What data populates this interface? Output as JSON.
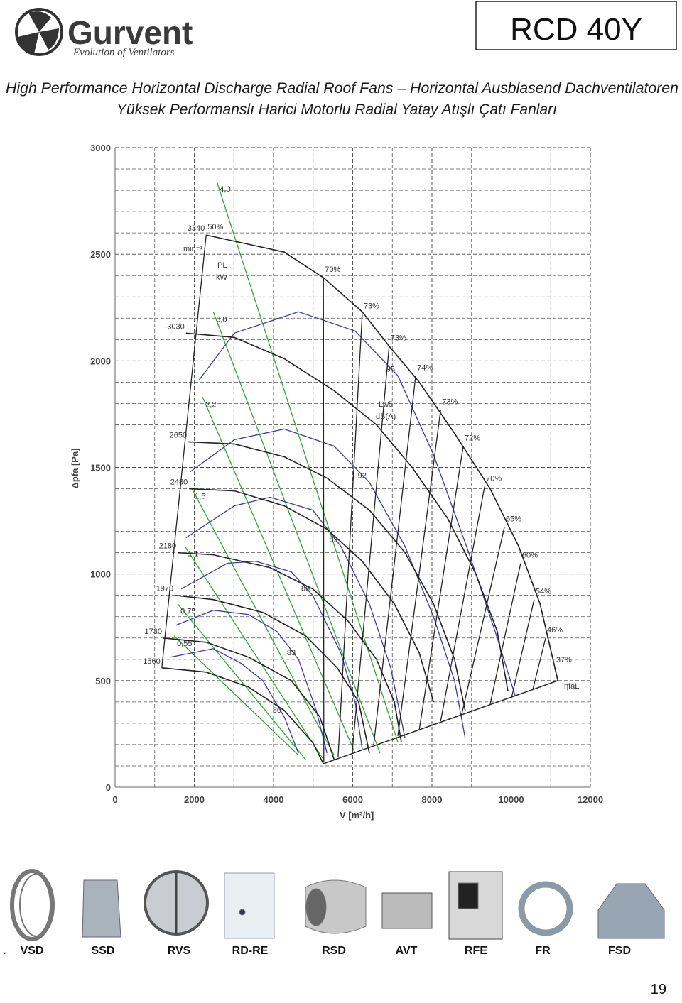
{
  "header": {
    "brand": "Gurvent",
    "tagline": "Evolution of Ventilators",
    "model": "RCD 40Y"
  },
  "titles": [
    "High Performance Horizontal Discharge Radial Roof Fans – Horizontal Ausblasend Dachventilatoren",
    "Yüksek Performanslı Harici Motorlu Radial Yatay Atışlı Çatı Fanları"
  ],
  "chart_data": {
    "type": "line",
    "xlabel": "V̇ [m³/h]",
    "ylabel": "Δpfa [Pa]",
    "xlim": [
      0,
      12000
    ],
    "ylim": [
      0,
      3000
    ],
    "xticks": [
      0,
      2000,
      4000,
      6000,
      8000,
      10000,
      12000
    ],
    "yticks": [
      0,
      500,
      1000,
      1500,
      2000,
      2500,
      3000
    ],
    "grid": true,
    "annotations": [
      "min⁻¹",
      "PL",
      "kW",
      "Lw5",
      "dB(A)",
      "ηfaL"
    ],
    "series": [
      {
        "name": "3340",
        "color": "#222222",
        "x": [
          2300,
          4270,
          5260,
          6240,
          6960,
          7680,
          8570,
          9470,
          10190,
          10730,
          11180
        ],
        "values": [
          2590,
          2510,
          2390,
          2230,
          2060,
          1900,
          1660,
          1400,
          1130,
          860,
          500
        ]
      },
      {
        "name": "3030",
        "color": "#222222",
        "x": [
          1790,
          3010,
          4270,
          5530,
          6600,
          7500,
          8400,
          9110,
          9650,
          9920
        ],
        "values": [
          2130,
          2110,
          2010,
          1860,
          1700,
          1500,
          1260,
          1000,
          730,
          450
        ]
      },
      {
        "name": "2650",
        "color": "#222222",
        "x": [
          1850,
          3010,
          4270,
          5350,
          6420,
          7320,
          8040,
          8570,
          8840
        ],
        "values": [
          1620,
          1610,
          1550,
          1450,
          1300,
          1100,
          860,
          600,
          360
        ]
      },
      {
        "name": "2480",
        "color": "#222222",
        "x": [
          1870,
          3010,
          4270,
          5350,
          6240,
          7050,
          7680,
          8040
        ],
        "values": [
          1400,
          1390,
          1320,
          1210,
          1060,
          860,
          630,
          400
        ]
      },
      {
        "name": "2180",
        "color": "#222222",
        "x": [
          1580,
          2480,
          3910,
          4990,
          5880,
          6600,
          7050,
          7230
        ],
        "values": [
          1100,
          1090,
          1030,
          930,
          780,
          600,
          400,
          210
        ]
      },
      {
        "name": "1970",
        "color": "#222222",
        "x": [
          1510,
          2480,
          3730,
          4810,
          5610,
          6150,
          6420
        ],
        "values": [
          900,
          880,
          820,
          710,
          560,
          400,
          160
        ]
      },
      {
        "name": "1730",
        "color": "#222222",
        "x": [
          1220,
          2300,
          3370,
          4450,
          5170,
          5530
        ],
        "values": [
          700,
          680,
          610,
          500,
          330,
          130
        ]
      },
      {
        "name": "1560",
        "color": "#222222",
        "x": [
          1180,
          2300,
          3370,
          4270,
          4990,
          5260
        ],
        "values": [
          560,
          540,
          470,
          360,
          210,
          110
        ]
      }
    ],
    "boundary": [
      {
        "color": "#222222",
        "x": [
          5260,
          11180
        ],
        "values": [
          110,
          500
        ]
      }
    ],
    "power_lines": [
      {
        "name": "4,0",
        "color": "#2fa82f",
        "x": [
          2570,
          7140
        ],
        "values": [
          2840,
          210
        ]
      },
      {
        "name": "3,0",
        "color": "#2fa82f",
        "x": [
          2480,
          6690
        ],
        "values": [
          2230,
          160
        ]
      },
      {
        "name": "2,2",
        "color": "#2fa82f",
        "x": [
          2210,
          6060
        ],
        "values": [
          1830,
          160
        ]
      },
      {
        "name": "1,5",
        "color": "#2fa82f",
        "x": [
          1940,
          5530
        ],
        "values": [
          1400,
          150
        ]
      },
      {
        "name": "1,1",
        "color": "#2fa82f",
        "x": [
          1760,
          5260
        ],
        "values": [
          1130,
          130
        ]
      },
      {
        "name": "0,75",
        "color": "#2fa82f",
        "x": [
          1580,
          4810
        ],
        "values": [
          860,
          130
        ]
      },
      {
        "name": "0,55",
        "color": "#2fa82f",
        "x": [
          1490,
          4630
        ],
        "values": [
          710,
          150
        ]
      }
    ],
    "efficiency_lines": [
      {
        "name": "50%",
        "color": "#222222",
        "x": [
          2300,
          1180
        ],
        "values": [
          2590,
          560
        ]
      },
      {
        "name": "70%",
        "color": "#222222",
        "x": [
          5260,
          5270
        ],
        "values": [
          2390,
          120
        ]
      },
      {
        "name": "73%",
        "color": "#222222",
        "x": [
          6240,
          5630
        ],
        "values": [
          2220,
          140
        ]
      },
      {
        "name": "73%",
        "color": "#222222",
        "x": [
          6920,
          5990
        ],
        "values": [
          2070,
          170
        ]
      },
      {
        "name": "74%",
        "color": "#222222",
        "x": [
          7590,
          6530
        ],
        "values": [
          1930,
          200
        ]
      },
      {
        "name": "73%",
        "color": "#222222",
        "x": [
          8220,
          7140
        ],
        "values": [
          1770,
          240
        ]
      },
      {
        "name": "72%",
        "color": "#222222",
        "x": [
          8790,
          7680
        ],
        "values": [
          1600,
          270
        ]
      },
      {
        "name": "70%",
        "color": "#222222",
        "x": [
          9330,
          8220
        ],
        "values": [
          1410,
          310
        ]
      },
      {
        "name": "65%",
        "color": "#222222",
        "x": [
          9830,
          8750
        ],
        "values": [
          1220,
          340
        ]
      },
      {
        "name": "60%",
        "color": "#222222",
        "x": [
          10240,
          9470
        ],
        "values": [
          1050,
          390
        ]
      },
      {
        "name": "54%",
        "color": "#222222",
        "x": [
          10580,
          10010
        ],
        "values": [
          880,
          420
        ]
      },
      {
        "name": "46%",
        "color": "#222222",
        "x": [
          10870,
          10550
        ],
        "values": [
          700,
          460
        ]
      },
      {
        "name": "37%",
        "color": "#222222",
        "x": [
          11100,
          11180
        ],
        "values": [
          560,
          500
        ]
      }
    ],
    "noise_curves": [
      {
        "name": "95",
        "color": "#3a3aa8",
        "x": [
          2120,
          3010,
          4630,
          6060,
          7140,
          8040,
          8930,
          9650,
          10100
        ],
        "values": [
          1910,
          2130,
          2230,
          2140,
          1930,
          1560,
          1100,
          700,
          430
        ]
      },
      {
        "name": "92",
        "color": "#3a3aa8",
        "x": [
          1900,
          3010,
          4270,
          5530,
          6420,
          7320,
          8040,
          8570,
          8840
        ],
        "values": [
          1480,
          1630,
          1680,
          1600,
          1430,
          1130,
          800,
          500,
          230
        ]
      },
      {
        "name": "89",
        "color": "#3a3aa8",
        "x": [
          1790,
          3010,
          3910,
          4990,
          5700,
          6420,
          6960,
          7320
        ],
        "values": [
          1170,
          1320,
          1360,
          1300,
          1130,
          860,
          560,
          230
        ]
      },
      {
        "name": "86",
        "color": "#3a3aa8",
        "x": [
          1670,
          2830,
          3550,
          4450,
          4990,
          5700,
          6060,
          6240
        ],
        "values": [
          930,
          1050,
          1060,
          1010,
          900,
          630,
          400,
          180
        ]
      },
      {
        "name": "83",
        "color": "#3a3aa8",
        "x": [
          1540,
          2480,
          3370,
          4090,
          4630,
          5080,
          5350
        ],
        "values": [
          760,
          830,
          810,
          730,
          600,
          360,
          160
        ]
      },
      {
        "name": "80",
        "color": "#3a3aa8",
        "x": [
          1400,
          2480,
          3190,
          3730,
          4270,
          4630
        ],
        "values": [
          610,
          650,
          580,
          500,
          330,
          160
        ]
      }
    ]
  },
  "accessories_lead": ".",
  "accessories": [
    "VSD",
    "SSD",
    "RVS",
    "RD-RE",
    "RSD",
    "AVT",
    "RFE",
    "FR",
    "FSD"
  ],
  "page_number": "19"
}
